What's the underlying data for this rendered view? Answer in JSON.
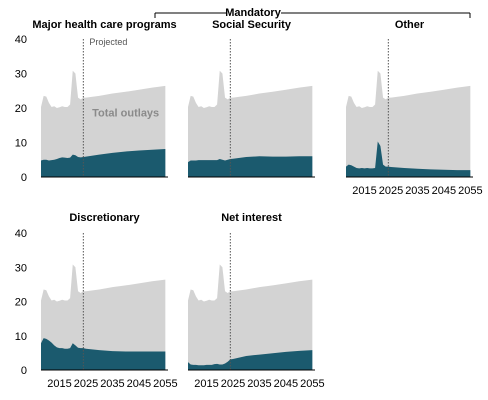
{
  "chart_data": {
    "type": "area",
    "group_title": "Mandatory",
    "y_ticks": [
      "40",
      "30",
      "20",
      "10",
      "0"
    ],
    "x_ticks": [
      "2015",
      "2025",
      "2035",
      "2045",
      "2055"
    ],
    "ylim": [
      0,
      40
    ],
    "xlim": [
      2008,
      2056
    ],
    "projection_start": 2024,
    "annotations": {
      "projected": "Projected",
      "total_outlays": "Total outlays"
    },
    "colors": {
      "total": "#d3d3d3",
      "component": "#1b5a6e",
      "divider": "#555555",
      "axis": "#000000"
    },
    "total_outlays": {
      "x": [
        2008,
        2009,
        2010,
        2011,
        2012,
        2013,
        2014,
        2015,
        2016,
        2017,
        2018,
        2019,
        2020,
        2021,
        2022,
        2023,
        2024,
        2025,
        2030,
        2035,
        2040,
        2045,
        2050,
        2055
      ],
      "y": [
        20.3,
        23.5,
        23.3,
        21.5,
        20.3,
        20.5,
        20.0,
        20.2,
        20.5,
        20.3,
        20.3,
        21.0,
        30.8,
        30.0,
        23.0,
        22.5,
        23.0,
        23.0,
        23.5,
        24.2,
        24.7,
        25.3,
        25.9,
        26.4
      ]
    },
    "panels": [
      {
        "title": "Major health care programs",
        "x": [
          2008,
          2009,
          2010,
          2011,
          2012,
          2013,
          2014,
          2015,
          2016,
          2017,
          2018,
          2019,
          2020,
          2021,
          2022,
          2023,
          2024,
          2025,
          2030,
          2035,
          2040,
          2045,
          2050,
          2055
        ],
        "y": [
          4.8,
          5.0,
          5.0,
          4.8,
          4.9,
          5.0,
          5.2,
          5.5,
          5.7,
          5.6,
          5.5,
          5.6,
          6.5,
          6.3,
          5.8,
          5.7,
          5.8,
          5.9,
          6.5,
          7.0,
          7.4,
          7.7,
          7.9,
          8.1
        ],
        "show_projected_label": true,
        "show_total_label": true
      },
      {
        "title": "Social Security",
        "x": [
          2008,
          2009,
          2010,
          2011,
          2012,
          2013,
          2014,
          2015,
          2016,
          2017,
          2018,
          2019,
          2020,
          2021,
          2022,
          2023,
          2024,
          2025,
          2030,
          2035,
          2040,
          2045,
          2050,
          2055
        ],
        "y": [
          4.3,
          4.8,
          4.8,
          4.8,
          4.9,
          4.9,
          4.9,
          4.9,
          4.9,
          4.9,
          4.9,
          4.9,
          5.2,
          5.0,
          4.8,
          5.0,
          5.2,
          5.3,
          5.8,
          6.0,
          5.9,
          5.9,
          6.0,
          6.0
        ],
        "show_projected_label": false,
        "show_total_label": false
      },
      {
        "title": "Other",
        "x": [
          2008,
          2009,
          2010,
          2011,
          2012,
          2013,
          2014,
          2015,
          2016,
          2017,
          2018,
          2019,
          2020,
          2021,
          2022,
          2023,
          2024,
          2025,
          2030,
          2035,
          2040,
          2045,
          2050,
          2055
        ],
        "y": [
          3.0,
          3.6,
          3.4,
          3.0,
          2.6,
          2.5,
          2.6,
          2.5,
          2.6,
          2.5,
          2.5,
          2.6,
          10.3,
          9.0,
          3.6,
          3.0,
          3.0,
          2.9,
          2.6,
          2.4,
          2.2,
          2.1,
          2.0,
          2.0
        ],
        "show_projected_label": false,
        "show_total_label": false
      },
      {
        "title": "Discretionary",
        "x": [
          2008,
          2009,
          2010,
          2011,
          2012,
          2013,
          2014,
          2015,
          2016,
          2017,
          2018,
          2019,
          2020,
          2021,
          2022,
          2023,
          2024,
          2025,
          2030,
          2035,
          2040,
          2045,
          2050,
          2055
        ],
        "y": [
          7.8,
          9.3,
          9.1,
          8.6,
          8.0,
          7.2,
          6.6,
          6.4,
          6.4,
          6.2,
          6.2,
          6.4,
          7.8,
          7.2,
          6.5,
          6.4,
          6.4,
          6.2,
          5.8,
          5.5,
          5.4,
          5.4,
          5.4,
          5.4
        ],
        "show_projected_label": false,
        "show_total_label": false
      },
      {
        "title": "Net interest",
        "x": [
          2008,
          2009,
          2010,
          2011,
          2012,
          2013,
          2014,
          2015,
          2016,
          2017,
          2018,
          2019,
          2020,
          2021,
          2022,
          2023,
          2024,
          2025,
          2030,
          2035,
          2040,
          2045,
          2050,
          2055
        ],
        "y": [
          2.3,
          1.6,
          1.5,
          1.5,
          1.4,
          1.4,
          1.4,
          1.5,
          1.5,
          1.5,
          1.7,
          1.8,
          1.6,
          1.6,
          1.9,
          2.4,
          3.1,
          3.2,
          4.1,
          4.5,
          4.9,
          5.3,
          5.6,
          5.8
        ],
        "show_projected_label": false,
        "show_total_label": false
      }
    ]
  }
}
